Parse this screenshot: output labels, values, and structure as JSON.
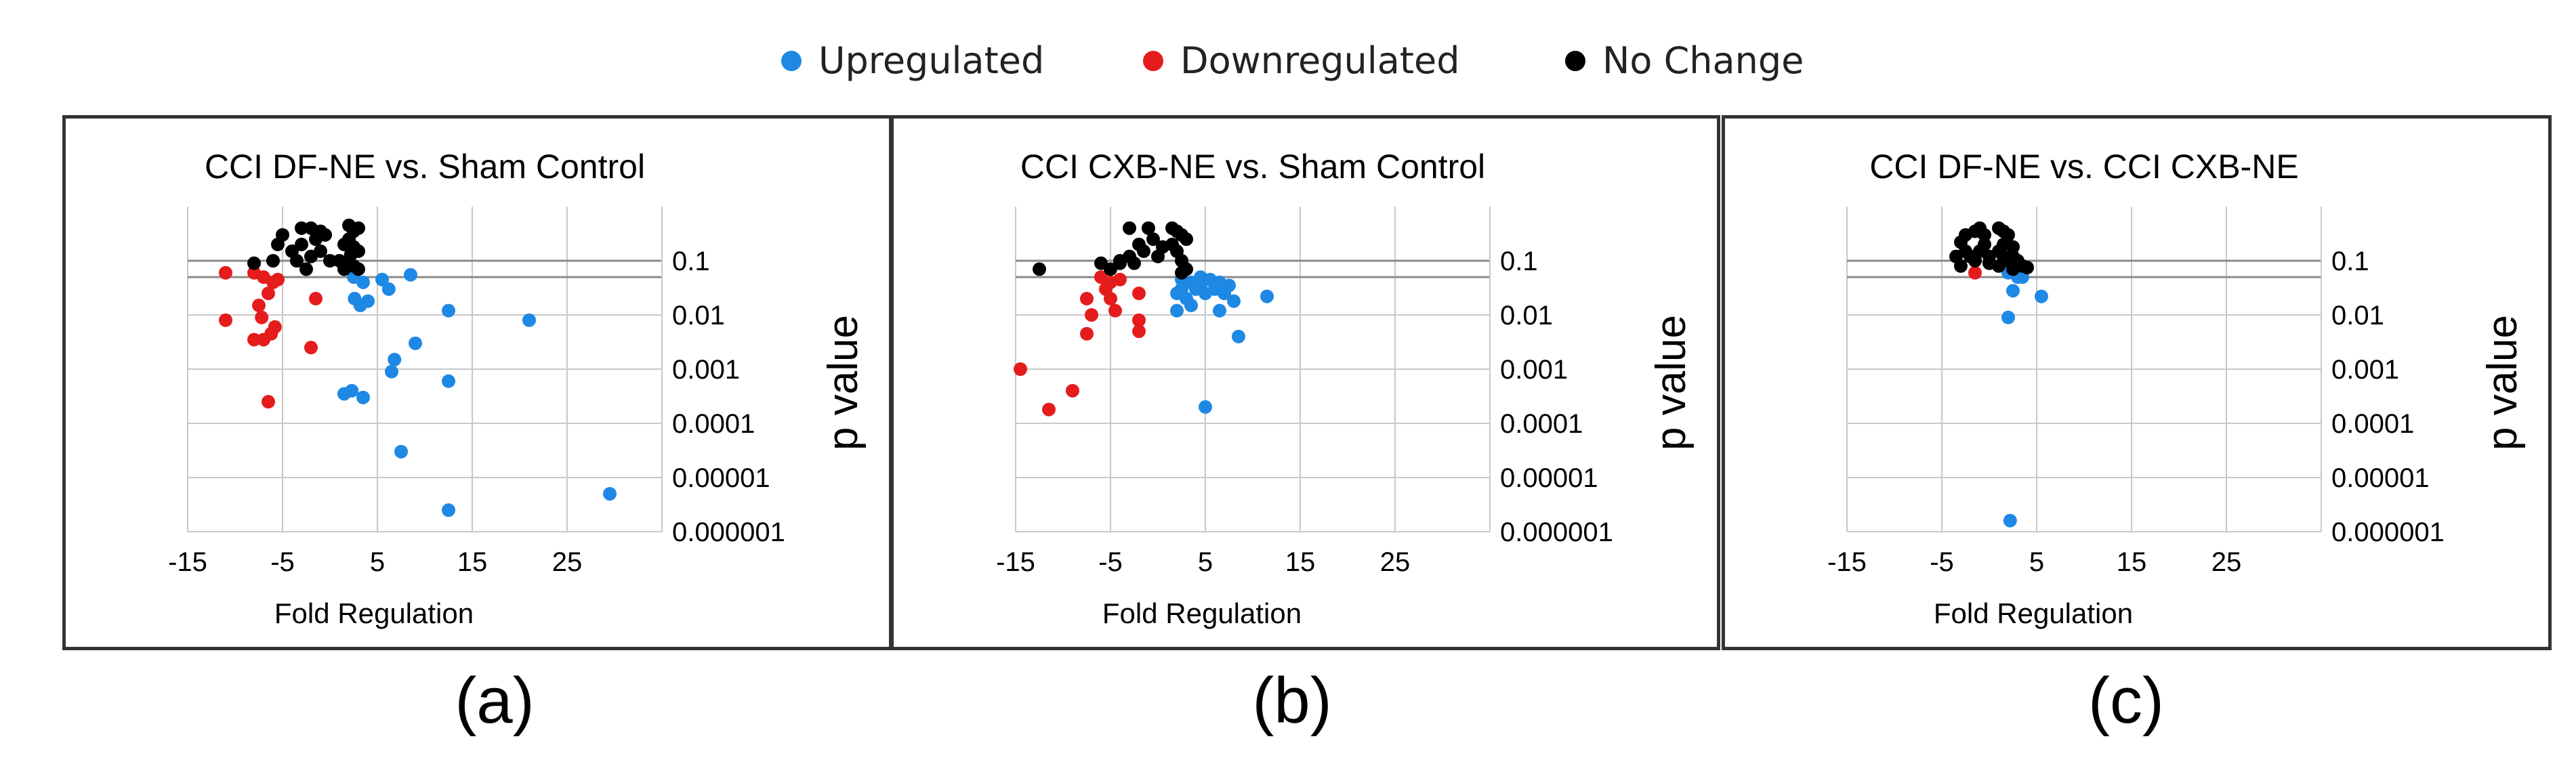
{
  "legend": [
    {
      "name": "Upregulated",
      "color": "#1e88e5"
    },
    {
      "name": "Downregulated",
      "color": "#e51c1c"
    },
    {
      "name": "No Change",
      "color": "#000000"
    }
  ],
  "chart_data": [
    {
      "type": "scatter",
      "panel_label": "(a)",
      "title": "CCI DF-NE vs. Sham Control",
      "xlabel": "Fold Regulation",
      "ylabel": "p value",
      "y_scale": "log",
      "xlim": [
        -15,
        35
      ],
      "x_ticks": [
        -15,
        -5,
        5,
        15,
        25
      ],
      "ylim": [
        1e-06,
        1
      ],
      "y_ticks": [
        "0.1",
        "0.01",
        "0.001",
        "0.0001",
        "0.00001",
        "0.000001"
      ],
      "y_tick_values": [
        0.1,
        0.01,
        0.001,
        0.0001,
        1e-05,
        1e-06
      ],
      "threshold_lines": [
        0.05,
        0.1
      ],
      "grid": true,
      "series": [
        {
          "name": "Upregulated",
          "color": "#1e88e5",
          "points": [
            [
              2.5,
              0.05
            ],
            [
              3.5,
              0.04
            ],
            [
              5.5,
              0.045
            ],
            [
              8.5,
              0.055
            ],
            [
              2.6,
              0.02
            ],
            [
              3.2,
              0.015
            ],
            [
              4,
              0.018
            ],
            [
              6.2,
              0.03
            ],
            [
              12.5,
              0.012
            ],
            [
              21,
              0.008
            ],
            [
              9,
              0.003
            ],
            [
              6.8,
              0.0015
            ],
            [
              6.5,
              0.0009
            ],
            [
              12.5,
              0.0006
            ],
            [
              1.5,
              0.00035
            ],
            [
              2.3,
              0.0004
            ],
            [
              3.5,
              0.0003
            ],
            [
              7.5,
              3e-05
            ],
            [
              12.5,
              2.5e-06
            ],
            [
              29.5,
              5e-06
            ]
          ]
        },
        {
          "name": "Downregulated",
          "color": "#e51c1c",
          "points": [
            [
              -11,
              0.06
            ],
            [
              -8,
              0.06
            ],
            [
              -7,
              0.05
            ],
            [
              -6,
              0.04
            ],
            [
              -5.5,
              0.045
            ],
            [
              -7.5,
              0.015
            ],
            [
              -6.5,
              0.025
            ],
            [
              -11,
              0.008
            ],
            [
              -7.2,
              0.009
            ],
            [
              -5.8,
              0.006
            ],
            [
              -1.5,
              0.02
            ],
            [
              -8,
              0.0035
            ],
            [
              -7,
              0.0035
            ],
            [
              -6.2,
              0.0045
            ],
            [
              -2,
              0.0025
            ],
            [
              -6.5,
              0.00025
            ]
          ]
        },
        {
          "name": "No Change",
          "color": "#000000",
          "points": [
            [
              -8,
              0.09
            ],
            [
              -6,
              0.1
            ],
            [
              -5,
              0.3
            ],
            [
              -3,
              0.4
            ],
            [
              -2,
              0.4
            ],
            [
              -1,
              0.35
            ],
            [
              -0.5,
              0.3
            ],
            [
              2,
              0.45
            ],
            [
              2.5,
              0.35
            ],
            [
              3,
              0.4
            ],
            [
              -5.5,
              0.2
            ],
            [
              -4,
              0.15
            ],
            [
              -3,
              0.2
            ],
            [
              -2,
              0.12
            ],
            [
              -1,
              0.15
            ],
            [
              0,
              0.1
            ],
            [
              1.5,
              0.2
            ],
            [
              2,
              0.25
            ],
            [
              2.5,
              0.18
            ],
            [
              3,
              0.15
            ],
            [
              2,
              0.1
            ],
            [
              2.5,
              0.08
            ],
            [
              3,
              0.07
            ],
            [
              1.5,
              0.07
            ],
            [
              -3.5,
              0.1
            ],
            [
              -2.5,
              0.07
            ],
            [
              -1.5,
              0.25
            ],
            [
              1,
              0.1
            ],
            [
              2.2,
              0.13
            ]
          ]
        }
      ]
    },
    {
      "type": "scatter",
      "panel_label": "(b)",
      "title": "CCI CXB-NE vs. Sham Control",
      "xlabel": "Fold Regulation",
      "ylabel": "p value",
      "y_scale": "log",
      "xlim": [
        -15,
        35
      ],
      "x_ticks": [
        -15,
        -5,
        5,
        15,
        25
      ],
      "ylim": [
        1e-06,
        1
      ],
      "y_ticks": [
        "0.1",
        "0.01",
        "0.001",
        "0.0001",
        "0.00001",
        "0.000001"
      ],
      "y_tick_values": [
        0.1,
        0.01,
        0.001,
        0.0001,
        1e-05,
        1e-06
      ],
      "threshold_lines": [
        0.05,
        0.1
      ],
      "grid": true,
      "series": [
        {
          "name": "Upregulated",
          "color": "#1e88e5",
          "points": [
            [
              2.5,
              0.045
            ],
            [
              3.5,
              0.04
            ],
            [
              4.5,
              0.05
            ],
            [
              5.5,
              0.045
            ],
            [
              6.5,
              0.04
            ],
            [
              7.5,
              0.035
            ],
            [
              11.5,
              0.022
            ],
            [
              2,
              0.025
            ],
            [
              3,
              0.02
            ],
            [
              4,
              0.03
            ],
            [
              5,
              0.025
            ],
            [
              6,
              0.03
            ],
            [
              7,
              0.025
            ],
            [
              8,
              0.018
            ],
            [
              2,
              0.012
            ],
            [
              3.5,
              0.015
            ],
            [
              6.5,
              0.012
            ],
            [
              8.5,
              0.004
            ],
            [
              5,
              0.0002
            ],
            [
              4.5,
              0.035
            ],
            [
              2.5,
              0.03
            ]
          ]
        },
        {
          "name": "Downregulated",
          "color": "#e51c1c",
          "points": [
            [
              -6,
              0.05
            ],
            [
              -5,
              0.04
            ],
            [
              -4,
              0.045
            ],
            [
              -5.5,
              0.03
            ],
            [
              -7.5,
              0.02
            ],
            [
              -5,
              0.02
            ],
            [
              -2,
              0.025
            ],
            [
              -7,
              0.01
            ],
            [
              -4.5,
              0.012
            ],
            [
              -2,
              0.008
            ],
            [
              -7.5,
              0.0045
            ],
            [
              -2,
              0.005
            ],
            [
              -14.5,
              0.001
            ],
            [
              -9,
              0.0004
            ],
            [
              -11.5,
              0.00018
            ]
          ]
        },
        {
          "name": "No Change",
          "color": "#000000",
          "points": [
            [
              -12.5,
              0.07
            ],
            [
              -6,
              0.09
            ],
            [
              -5,
              0.07
            ],
            [
              -4,
              0.1
            ],
            [
              -3,
              0.4
            ],
            [
              -1,
              0.4
            ],
            [
              -0.5,
              0.25
            ],
            [
              1.5,
              0.4
            ],
            [
              2,
              0.35
            ],
            [
              2.5,
              0.3
            ],
            [
              3,
              0.25
            ],
            [
              -2,
              0.2
            ],
            [
              -1.5,
              0.15
            ],
            [
              0,
              0.12
            ],
            [
              1.5,
              0.2
            ],
            [
              2,
              0.15
            ],
            [
              2.5,
              0.1
            ],
            [
              3,
              0.07
            ],
            [
              2.5,
              0.06
            ],
            [
              -4,
              0.09
            ],
            [
              -3,
              0.12
            ],
            [
              0.5,
              0.18
            ],
            [
              -2.5,
              0.09
            ]
          ]
        }
      ]
    },
    {
      "type": "scatter",
      "panel_label": "(c)",
      "title": "CCI DF-NE vs. CCI CXB-NE",
      "xlabel": "Fold Regulation",
      "ylabel": "p value",
      "y_scale": "log",
      "xlim": [
        -15,
        35
      ],
      "x_ticks": [
        -15,
        -5,
        5,
        15,
        25
      ],
      "ylim": [
        1e-06,
        1
      ],
      "y_ticks": [
        "0.1",
        "0.01",
        "0.001",
        "0.0001",
        "0.00001",
        "0.000001"
      ],
      "y_tick_values": [
        0.1,
        0.01,
        0.001,
        0.0001,
        1e-05,
        1e-06
      ],
      "threshold_lines": [
        0.05,
        0.1
      ],
      "grid": true,
      "series": [
        {
          "name": "Upregulated",
          "color": "#1e88e5",
          "points": [
            [
              2,
              0.06
            ],
            [
              3,
              0.05
            ],
            [
              3.5,
              0.05
            ],
            [
              5.5,
              0.022
            ],
            [
              2.5,
              0.028
            ],
            [
              2,
              0.009
            ],
            [
              2.2,
              1.6e-06
            ]
          ]
        },
        {
          "name": "Downregulated",
          "color": "#e51c1c",
          "points": [
            [
              -1.5,
              0.06
            ]
          ]
        },
        {
          "name": "No Change",
          "color": "#000000",
          "points": [
            [
              -3,
              0.22
            ],
            [
              -2.5,
              0.3
            ],
            [
              -1.5,
              0.35
            ],
            [
              -1,
              0.4
            ],
            [
              -0.5,
              0.3
            ],
            [
              1,
              0.4
            ],
            [
              1.5,
              0.35
            ],
            [
              2,
              0.3
            ],
            [
              -2,
              0.12
            ],
            [
              -1,
              0.15
            ],
            [
              0,
              0.12
            ],
            [
              1,
              0.15
            ],
            [
              1.5,
              0.12
            ],
            [
              2,
              0.1
            ],
            [
              2.5,
              0.12
            ],
            [
              3,
              0.1
            ],
            [
              3.5,
              0.08
            ],
            [
              -3,
              0.08
            ],
            [
              -1.5,
              0.1
            ],
            [
              0,
              0.09
            ],
            [
              1,
              0.08
            ],
            [
              2.5,
              0.07
            ],
            [
              4,
              0.075
            ],
            [
              -2.5,
              0.15
            ],
            [
              -0.5,
              0.2
            ],
            [
              1.5,
              0.2
            ],
            [
              2.5,
              0.18
            ],
            [
              -3.5,
              0.12
            ]
          ]
        }
      ]
    }
  ]
}
